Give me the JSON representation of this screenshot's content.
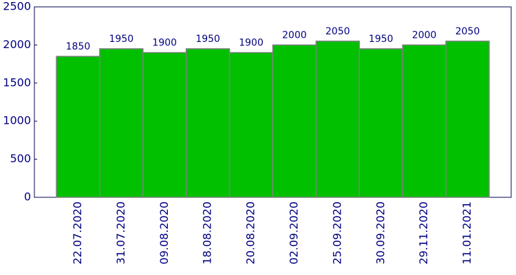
{
  "chart_data": {
    "type": "bar",
    "categories": [
      "22.07.2020",
      "31.07.2020",
      "09.08.2020",
      "18.08.2020",
      "20.08.2020",
      "02.09.2020",
      "25.09.2020",
      "30.09.2020",
      "29.11.2020",
      "11.01.2021"
    ],
    "values": [
      1850,
      1950,
      1900,
      1950,
      1900,
      2000,
      2050,
      1950,
      2000,
      2050
    ],
    "color": "#00c000",
    "ylim": [
      0,
      2500
    ],
    "yticks": [
      0,
      500,
      1000,
      1500,
      2000,
      2500
    ]
  }
}
